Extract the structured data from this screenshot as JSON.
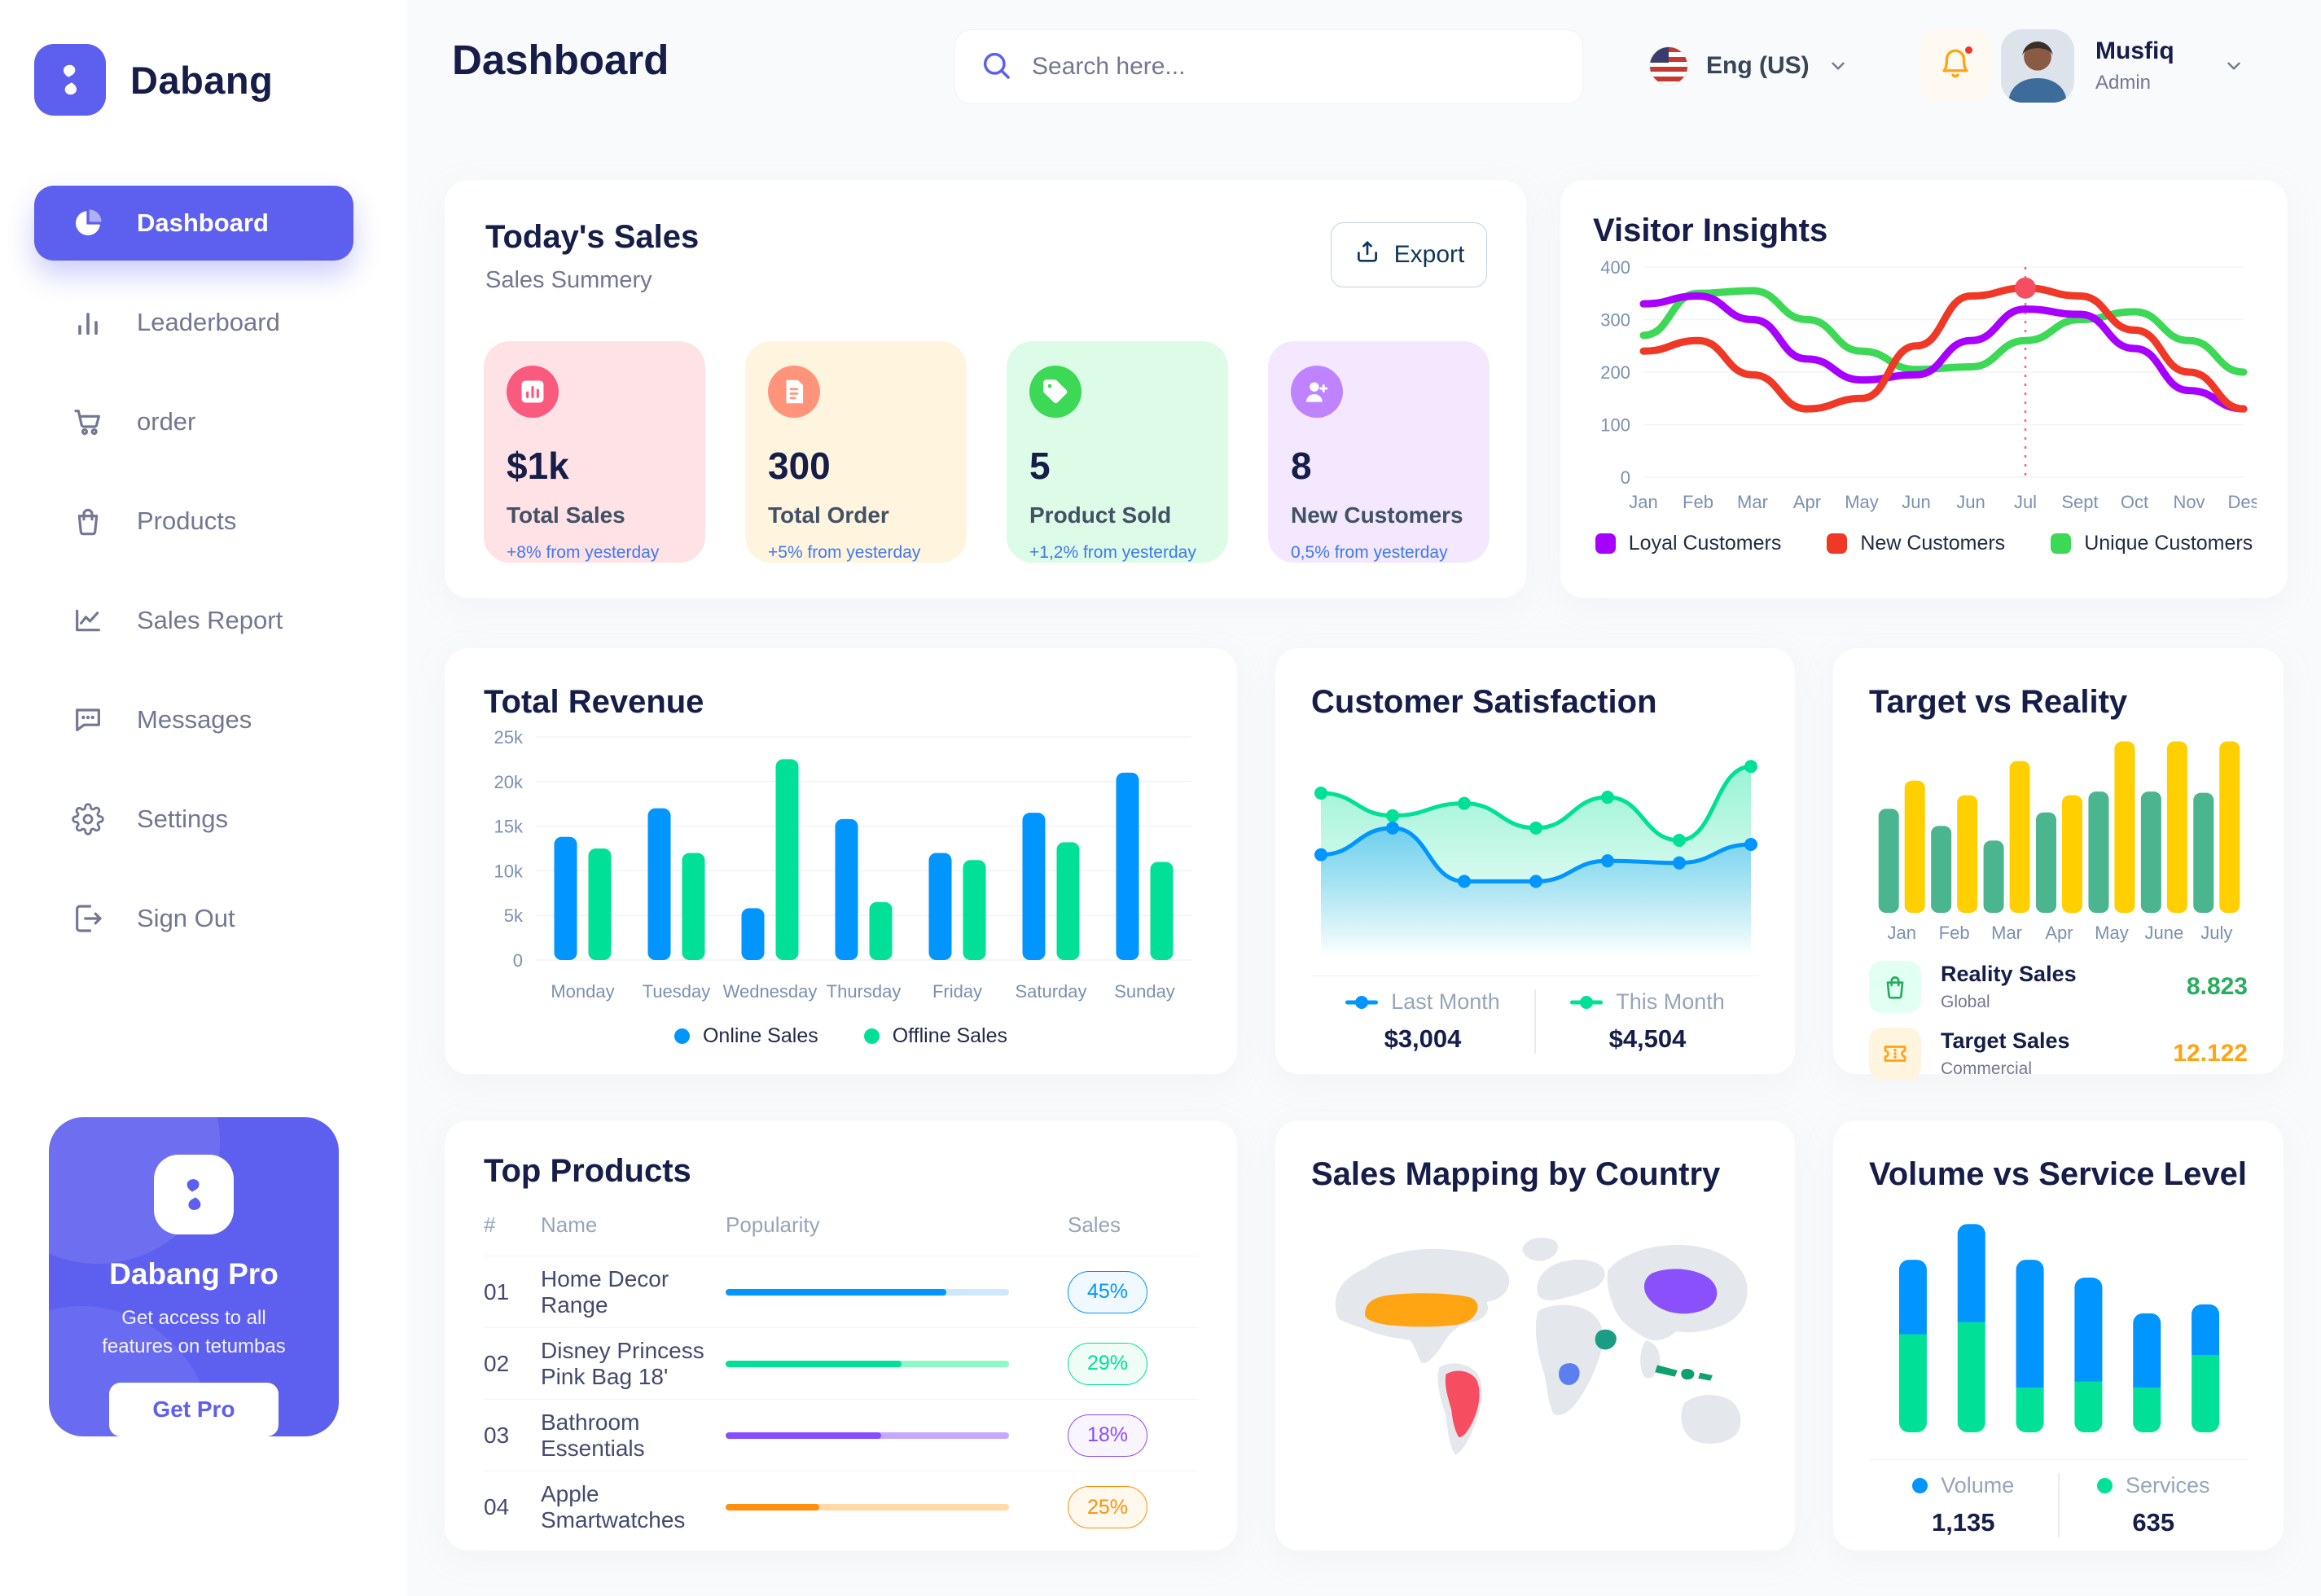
{
  "app": {
    "name": "Dabang"
  },
  "sidebar": {
    "items": [
      {
        "label": "Dashboard",
        "icon": "pie-chart",
        "active": true
      },
      {
        "label": "Leaderboard",
        "icon": "bar-chart",
        "active": false
      },
      {
        "label": "order",
        "icon": "cart",
        "active": false
      },
      {
        "label": "Products",
        "icon": "bag",
        "active": false
      },
      {
        "label": "Sales Report",
        "icon": "line-chart",
        "active": false
      },
      {
        "label": "Messages",
        "icon": "message",
        "active": false
      },
      {
        "label": "Settings",
        "icon": "gear",
        "active": false
      },
      {
        "label": "Sign Out",
        "icon": "sign-out",
        "active": false
      }
    ],
    "pro": {
      "title": "Dabang Pro",
      "description": "Get access to all features on tetumbas",
      "button": "Get Pro"
    }
  },
  "header": {
    "title": "Dashboard",
    "search_placeholder": "Search here...",
    "language": "Eng (US)",
    "user": {
      "name": "Musfiq",
      "role": "Admin"
    }
  },
  "today_sales": {
    "title": "Today's Sales",
    "subtitle": "Sales Summery",
    "export_label": "Export",
    "stats": [
      {
        "value": "$1k",
        "label": "Total Sales",
        "delta": "+8% from yesterday",
        "bg": "#FFE2E5",
        "icon_bg": "#FA5A7D",
        "icon": "stat-chart"
      },
      {
        "value": "300",
        "label": "Total Order",
        "delta": "+5% from yesterday",
        "bg": "#FFF4DE",
        "icon_bg": "#FF947A",
        "icon": "stat-file"
      },
      {
        "value": "5",
        "label": "Product Sold",
        "delta": "+1,2% from yesterday",
        "bg": "#DCFCE7",
        "icon_bg": "#3CD856",
        "icon": "stat-tag"
      },
      {
        "value": "8",
        "label": "New Customers",
        "delta": "0,5% from yesterday",
        "bg": "#F3E8FF",
        "icon_bg": "#BF83FF",
        "icon": "stat-user"
      }
    ]
  },
  "chart_data": [
    {
      "id": "visitor_insights",
      "type": "line",
      "title": "Visitor Insights",
      "x": [
        "Jan",
        "Feb",
        "Mar",
        "Apr",
        "May",
        "Jun",
        "Jun",
        "Jul",
        "Sept",
        "Oct",
        "Nov",
        "Des"
      ],
      "ylim": [
        0,
        400
      ],
      "yticks": [
        0,
        100,
        200,
        300,
        400
      ],
      "grid": true,
      "legend_position": "bottom",
      "series": [
        {
          "name": "Loyal Customers",
          "color": "#A700FF",
          "values": [
            330,
            345,
            300,
            225,
            185,
            195,
            260,
            320,
            310,
            245,
            165,
            130
          ]
        },
        {
          "name": "New Customers",
          "color": "#EF3826",
          "values": [
            240,
            260,
            195,
            130,
            150,
            250,
            345,
            360,
            345,
            280,
            200,
            130
          ]
        },
        {
          "name": "Unique Customers",
          "color": "#3CD856",
          "values": [
            270,
            350,
            355,
            300,
            240,
            205,
            210,
            260,
            300,
            315,
            260,
            200
          ]
        }
      ],
      "marker": {
        "series": 1,
        "index": 7,
        "color": "#F64E60"
      }
    },
    {
      "id": "total_revenue",
      "type": "bar",
      "title": "Total Revenue",
      "categories": [
        "Monday",
        "Tuesday",
        "Wednesday",
        "Thursday",
        "Friday",
        "Saturday",
        "Sunday"
      ],
      "ylim": [
        0,
        25
      ],
      "yticks": [
        0,
        5,
        10,
        15,
        20,
        25
      ],
      "ytick_labels": [
        "0",
        "5k",
        "10k",
        "15k",
        "20k",
        "25k"
      ],
      "grid": true,
      "series": [
        {
          "name": "Online Sales",
          "color": "#0095FF",
          "values": [
            13.8,
            17,
            5.8,
            15.8,
            12,
            16.5,
            21
          ]
        },
        {
          "name": "Offline Sales",
          "color": "#00E096",
          "values": [
            12.5,
            12,
            22.5,
            6.5,
            11.2,
            13.2,
            11
          ]
        }
      ],
      "legend_position": "bottom"
    },
    {
      "id": "customer_satisfaction",
      "type": "area",
      "title": "Customer Satisfaction",
      "ylim": [
        0,
        100
      ],
      "series": [
        {
          "name": "Last Month",
          "color": "#0095FF",
          "total": "$3,004",
          "values": [
            45,
            58,
            32,
            32,
            42,
            41,
            50
          ]
        },
        {
          "name": "This Month",
          "color": "#00E096",
          "total": "$4,504",
          "values": [
            75,
            64,
            70,
            58,
            73,
            52,
            88
          ]
        }
      ]
    },
    {
      "id": "target_vs_reality",
      "type": "bar",
      "title": "Target vs Reality",
      "categories": [
        "Jan",
        "Feb",
        "Mar",
        "Apr",
        "May",
        "June",
        "July"
      ],
      "ylim": [
        0,
        14.5
      ],
      "series": [
        {
          "name": "Reality Sales",
          "color": "#4AB58E",
          "values": [
            8.5,
            7.1,
            5.9,
            8.2,
            9.9,
            9.9,
            9.8
          ]
        },
        {
          "name": "Target Sales",
          "color": "#FFCF00",
          "values": [
            10.8,
            9.6,
            12.4,
            9.6,
            14,
            14,
            14
          ]
        }
      ],
      "legend": [
        {
          "label": "Reality Sales",
          "sub": "Global",
          "value": "8.823",
          "value_color": "#27AE60",
          "icon": "bag",
          "icon_bg": "#E2FFF3",
          "icon_color": "#27AE60"
        },
        {
          "label": "Target Sales",
          "sub": "Commercial",
          "value": "12.122",
          "value_color": "#FFA412",
          "icon": "ticket",
          "icon_bg": "#FFF4DE",
          "icon_color": "#FFA412"
        }
      ]
    },
    {
      "id": "top_products",
      "type": "table",
      "title": "Top Products",
      "headers": [
        "#",
        "Name",
        "Popularity",
        "Sales"
      ],
      "rows": [
        {
          "num": "01",
          "name": "Home Decor Range",
          "popularity": 78,
          "sales": "45%",
          "color": "#0095FF",
          "track": "#CDE7FF",
          "badge_bg": "#F0F9FF"
        },
        {
          "num": "02",
          "name": "Disney Princess Pink Bag 18'",
          "popularity": 62,
          "sales": "29%",
          "color": "#00E096",
          "track": "#8CFAC7",
          "badge_bg": "#F0FDF7"
        },
        {
          "num": "03",
          "name": "Bathroom Essentials",
          "popularity": 55,
          "sales": "18%",
          "color": "#884DFF",
          "track": "#C5A8FF",
          "badge_bg": "#F9F5FF"
        },
        {
          "num": "04",
          "name": "Apple Smartwatches",
          "popularity": 33,
          "sales": "25%",
          "color": "#FF8F0D",
          "track": "#FFD9A6",
          "badge_bg": "#FFF8EC"
        }
      ]
    },
    {
      "id": "sales_map",
      "type": "map",
      "title": "Sales Mapping by Country",
      "base_color": "#E4E7EC",
      "countries": [
        {
          "name": "United States",
          "color": "#FFA412"
        },
        {
          "name": "Brazil",
          "color": "#F64E60"
        },
        {
          "name": "Saudi Arabia",
          "color": "#1B9C85"
        },
        {
          "name": "DR Congo",
          "color": "#5B7FEE"
        },
        {
          "name": "China",
          "color": "#8950FC"
        },
        {
          "name": "Indonesia",
          "color": "#0FA06F"
        }
      ]
    },
    {
      "id": "volume_service",
      "type": "stacked_bar",
      "title": "Volume vs Service Level",
      "series": [
        {
          "name": "Volume",
          "color": "#0095FF",
          "total": "1,135",
          "values": [
            25,
            33,
            43,
            35,
            25,
            17
          ]
        },
        {
          "name": "Services",
          "color": "#00E096",
          "total": "635",
          "values": [
            33,
            37,
            15,
            17,
            15,
            26
          ]
        }
      ]
    }
  ]
}
